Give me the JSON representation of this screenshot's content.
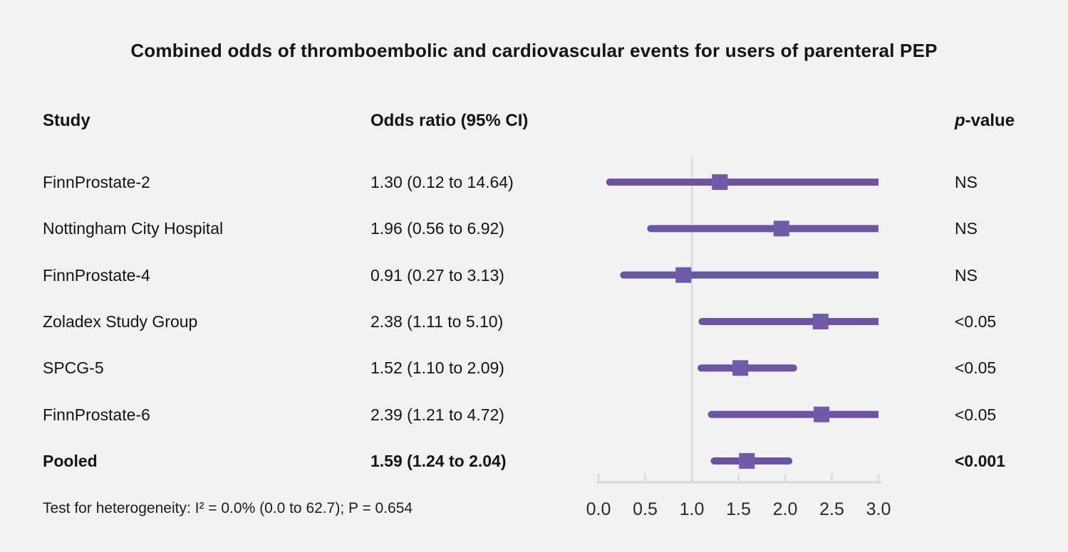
{
  "title": "Combined odds of thromboembolic and cardiovascular events for users of parenteral PEP",
  "columns": {
    "study": "Study",
    "odds_ratio": "Odds ratio (95% CI)",
    "p_prefix": "p",
    "p_suffix": "-value"
  },
  "footer": "Test for heterogeneity: I² = 0.0% (0.0 to 62.7); P = 0.654",
  "colors": {
    "background": "#f2f2f2",
    "text": "#141414",
    "ci_line": "#6a54a3",
    "marker": "#6e5caa",
    "axis": "#d6dade",
    "reference_line": "#d9dde2"
  },
  "chart_data": {
    "type": "forest",
    "title": "Combined odds of thromboembolic and cardiovascular events for users of parenteral PEP",
    "xlim": [
      0.0,
      3.0
    ],
    "axis_ticks": [
      "0.0",
      "0.5",
      "1.0",
      "1.5",
      "2.0",
      "2.5",
      "3.0"
    ],
    "axis_tick_values": [
      0.0,
      0.5,
      1.0,
      1.5,
      2.0,
      2.5,
      3.0
    ],
    "reference_line": 1.0,
    "grid": false,
    "legend": "none",
    "rows": [
      {
        "study": "FinnProstate-2",
        "or_text": "1.30 (0.12 to 14.64)",
        "or": 1.3,
        "ci_low": 0.12,
        "ci_high": 14.64,
        "p": "NS",
        "bold": false
      },
      {
        "study": "Nottingham City Hospital",
        "or_text": "1.96 (0.56 to 6.92)",
        "or": 1.96,
        "ci_low": 0.56,
        "ci_high": 6.92,
        "p": "NS",
        "bold": false
      },
      {
        "study": "FinnProstate-4",
        "or_text": "0.91 (0.27 to 3.13)",
        "or": 0.91,
        "ci_low": 0.27,
        "ci_high": 3.13,
        "p": "NS",
        "bold": false
      },
      {
        "study": "Zoladex Study Group",
        "or_text": "2.38 (1.11 to 5.10)",
        "or": 2.38,
        "ci_low": 1.11,
        "ci_high": 5.1,
        "p": "<0.05",
        "bold": false
      },
      {
        "study": "SPCG-5",
        "or_text": "1.52 (1.10 to 2.09)",
        "or": 1.52,
        "ci_low": 1.1,
        "ci_high": 2.09,
        "p": "<0.05",
        "bold": false
      },
      {
        "study": "FinnProstate-6",
        "or_text": "2.39 (1.21 to 4.72)",
        "or": 2.39,
        "ci_low": 1.21,
        "ci_high": 4.72,
        "p": "<0.05",
        "bold": false
      },
      {
        "study": "Pooled",
        "or_text": "1.59 (1.24 to 2.04)",
        "or": 1.59,
        "ci_low": 1.24,
        "ci_high": 2.04,
        "p": "<0.001",
        "bold": true
      }
    ]
  }
}
